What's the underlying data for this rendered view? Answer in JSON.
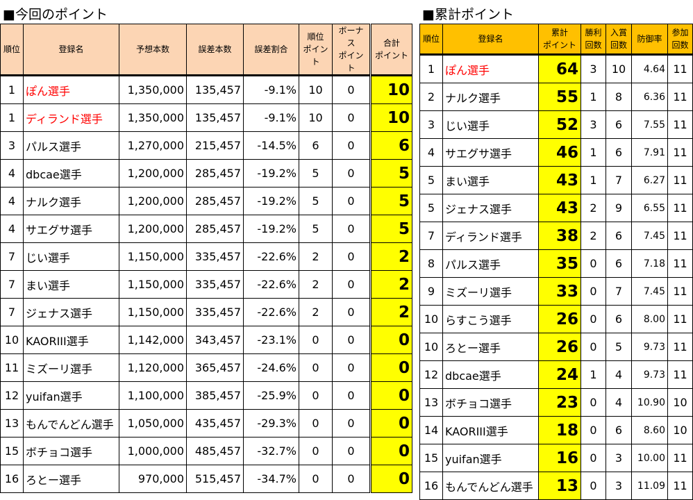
{
  "left": {
    "title": "■今回のポイント",
    "headers": [
      "順位",
      "登録名",
      "予想本数",
      "誤差本数",
      "誤差割合",
      "順位\nポイント",
      "ボーナス\nポイント",
      "合計\nポイント"
    ],
    "rows": [
      [
        "1",
        "ぽん選手",
        "1,350,000",
        "135,457",
        "-9.1%",
        "10",
        "0",
        "10",
        true
      ],
      [
        "1",
        "ディランド選手",
        "1,350,000",
        "135,457",
        "-9.1%",
        "10",
        "0",
        "10",
        true
      ],
      [
        "3",
        "パルス選手",
        "1,270,000",
        "215,457",
        "-14.5%",
        "6",
        "0",
        "6",
        false
      ],
      [
        "4",
        "dbcae選手",
        "1,200,000",
        "285,457",
        "-19.2%",
        "5",
        "0",
        "5",
        false
      ],
      [
        "4",
        "ナルク選手",
        "1,200,000",
        "285,457",
        "-19.2%",
        "5",
        "0",
        "5",
        false
      ],
      [
        "4",
        "サエグサ選手",
        "1,200,000",
        "285,457",
        "-19.2%",
        "5",
        "0",
        "5",
        false
      ],
      [
        "7",
        "じい選手",
        "1,150,000",
        "335,457",
        "-22.6%",
        "2",
        "0",
        "2",
        false
      ],
      [
        "7",
        "まい選手",
        "1,150,000",
        "335,457",
        "-22.6%",
        "2",
        "0",
        "2",
        false
      ],
      [
        "7",
        "ジェナス選手",
        "1,150,000",
        "335,457",
        "-22.6%",
        "2",
        "0",
        "2",
        false
      ],
      [
        "10",
        "KAORIII選手",
        "1,142,000",
        "343,457",
        "-23.1%",
        "0",
        "0",
        "0",
        false
      ],
      [
        "11",
        "ミズーリ選手",
        "1,120,000",
        "365,457",
        "-24.6%",
        "0",
        "0",
        "0",
        false
      ],
      [
        "12",
        "yuifan選手",
        "1,100,000",
        "385,457",
        "-25.9%",
        "0",
        "0",
        "0",
        false
      ],
      [
        "13",
        "もんでんどん選手",
        "1,050,000",
        "435,457",
        "-29.3%",
        "0",
        "0",
        "0",
        false
      ],
      [
        "15",
        "ボチョコ選手",
        "1,000,000",
        "485,457",
        "-32.7%",
        "0",
        "0",
        "0",
        false
      ],
      [
        "16",
        "ろとー選手",
        "970,000",
        "515,457",
        "-34.7%",
        "0",
        "0",
        "0",
        false
      ]
    ]
  },
  "right": {
    "title": "■累計ポイント",
    "headers": [
      "順位",
      "登録名",
      "累計\nポイント",
      "勝利\n回数",
      "入賞\n回数",
      "防御率",
      "参加\n回数"
    ],
    "rows": [
      [
        "1",
        "ぽん選手",
        "64",
        "3",
        "10",
        "4.64",
        "11",
        true
      ],
      [
        "2",
        "ナルク選手",
        "55",
        "1",
        "8",
        "6.36",
        "11",
        false
      ],
      [
        "3",
        "じい選手",
        "52",
        "3",
        "6",
        "7.55",
        "11",
        false
      ],
      [
        "4",
        "サエグサ選手",
        "46",
        "1",
        "6",
        "7.91",
        "11",
        false
      ],
      [
        "5",
        "まい選手",
        "43",
        "1",
        "7",
        "6.27",
        "11",
        false
      ],
      [
        "5",
        "ジェナス選手",
        "43",
        "2",
        "9",
        "6.55",
        "11",
        false
      ],
      [
        "7",
        "ディランド選手",
        "38",
        "2",
        "6",
        "7.45",
        "11",
        false
      ],
      [
        "8",
        "パルス選手",
        "35",
        "0",
        "6",
        "7.18",
        "11",
        false
      ],
      [
        "9",
        "ミズーリ選手",
        "33",
        "0",
        "7",
        "7.45",
        "11",
        false
      ],
      [
        "10",
        "らすこう選手",
        "26",
        "0",
        "6",
        "8.00",
        "11",
        false
      ],
      [
        "10",
        "ろとー選手",
        "26",
        "0",
        "5",
        "9.73",
        "11",
        false
      ],
      [
        "12",
        "dbcae選手",
        "24",
        "1",
        "4",
        "9.73",
        "11",
        false
      ],
      [
        "13",
        "ボチョコ選手",
        "23",
        "0",
        "4",
        "10.90",
        "10",
        false
      ],
      [
        "14",
        "KAORIII選手",
        "18",
        "0",
        "6",
        "8.60",
        "10",
        false
      ],
      [
        "15",
        "yuifan選手",
        "16",
        "0",
        "3",
        "10.00",
        "11",
        false
      ],
      [
        "16",
        "もんでんどん選手",
        "13",
        "0",
        "3",
        "11.09",
        "11",
        false
      ]
    ]
  }
}
